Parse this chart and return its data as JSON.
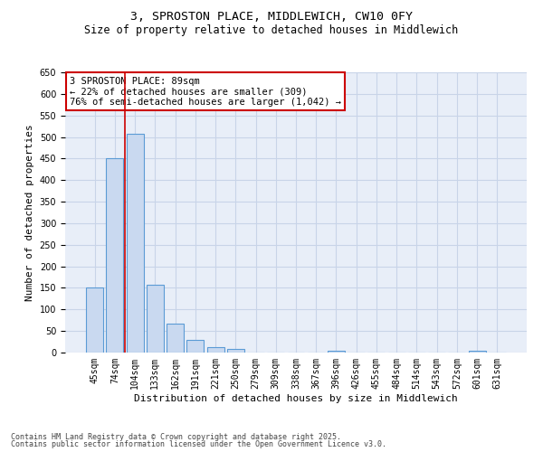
{
  "title_line1": "3, SPROSTON PLACE, MIDDLEWICH, CW10 0FY",
  "title_line2": "Size of property relative to detached houses in Middlewich",
  "xlabel": "Distribution of detached houses by size in Middlewich",
  "ylabel": "Number of detached properties",
  "categories": [
    "45sqm",
    "74sqm",
    "104sqm",
    "133sqm",
    "162sqm",
    "191sqm",
    "221sqm",
    "250sqm",
    "279sqm",
    "309sqm",
    "338sqm",
    "367sqm",
    "396sqm",
    "426sqm",
    "455sqm",
    "484sqm",
    "514sqm",
    "543sqm",
    "572sqm",
    "601sqm",
    "631sqm"
  ],
  "values": [
    150,
    450,
    507,
    158,
    67,
    30,
    12,
    8,
    0,
    0,
    0,
    0,
    5,
    0,
    0,
    0,
    0,
    0,
    0,
    5,
    0
  ],
  "bar_color": "#c9d9f0",
  "bar_edge_color": "#5b9bd5",
  "red_line_x": 1.5,
  "annotation_text": "3 SPROSTON PLACE: 89sqm\n← 22% of detached houses are smaller (309)\n76% of semi-detached houses are larger (1,042) →",
  "annotation_box_color": "#ffffff",
  "annotation_edge_color": "#cc0000",
  "vline_color": "#cc0000",
  "ylim": [
    0,
    650
  ],
  "yticks": [
    0,
    50,
    100,
    150,
    200,
    250,
    300,
    350,
    400,
    450,
    500,
    550,
    600,
    650
  ],
  "grid_color": "#c8d4e8",
  "bg_color": "#e8eef8",
  "footer_line1": "Contains HM Land Registry data © Crown copyright and database right 2025.",
  "footer_line2": "Contains public sector information licensed under the Open Government Licence v3.0.",
  "title_fontsize": 9.5,
  "subtitle_fontsize": 8.5,
  "axis_label_fontsize": 8,
  "tick_fontsize": 7,
  "annotation_fontsize": 7.5,
  "footer_fontsize": 6
}
